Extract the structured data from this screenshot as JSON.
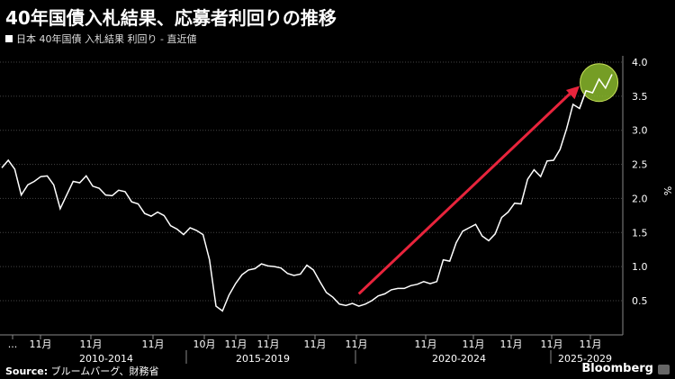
{
  "header": {
    "title": "40年国債入札結果、応募者利回りの推移",
    "subtitle": "日本 40年国債 入札結果 利回り - 直近値"
  },
  "footer": {
    "source_label": "Source:",
    "source_text": " ブルームバーグ、財務省",
    "brand": "Bloomberg"
  },
  "colors": {
    "background": "#000000",
    "line": "#ffffff",
    "arrow": "#e8243c",
    "highlight": "#8ab82c"
  },
  "chart_data": {
    "type": "line",
    "ylabel": "%",
    "ylim": [
      0,
      4.0
    ],
    "yticks": [
      "0.5",
      "1.0",
      "1.5",
      "2.0",
      "2.5",
      "3.0",
      "3.5",
      "4.0"
    ],
    "x_tick_labels": [
      "...",
      "11月",
      "11月",
      "11月",
      "10月",
      "11月",
      "11月",
      "11月",
      "11月",
      "11月",
      "11月",
      "11月",
      "11月",
      "11月"
    ],
    "periods": [
      "2010-2014",
      "2015-2019",
      "2020-2024",
      "2025-2029"
    ],
    "series": [
      {
        "values": [
          2.45,
          2.56,
          2.43,
          2.05,
          2.2,
          2.25,
          2.32,
          2.33,
          2.2,
          1.85,
          2.05,
          2.25,
          2.23,
          2.33,
          2.18,
          2.15,
          2.05,
          2.04,
          2.12,
          2.1,
          1.95,
          1.92,
          1.78,
          1.74,
          1.8,
          1.75,
          1.6,
          1.55,
          1.47,
          1.57,
          1.53,
          1.47,
          1.1,
          0.42,
          0.35,
          0.58,
          0.75,
          0.88,
          0.95,
          0.97,
          1.04,
          1.01,
          1.0,
          0.98,
          0.9,
          0.87,
          0.89,
          1.02,
          0.95,
          0.78,
          0.62,
          0.55,
          0.45,
          0.43,
          0.46,
          0.42,
          0.45,
          0.5,
          0.57,
          0.6,
          0.66,
          0.68,
          0.68,
          0.72,
          0.74,
          0.78,
          0.75,
          0.78,
          1.1,
          1.08,
          1.35,
          1.52,
          1.57,
          1.62,
          1.45,
          1.38,
          1.48,
          1.72,
          1.8,
          1.93,
          1.92,
          2.28,
          2.42,
          2.32,
          2.55,
          2.56,
          2.72,
          3.02,
          3.38,
          3.32,
          3.58,
          3.55,
          3.75,
          3.62,
          3.82
        ]
      }
    ],
    "annotations": {
      "arrow_from_index": 55,
      "arrow_from_value": 0.6,
      "arrow_to_index": 89,
      "arrow_to_value": 3.65,
      "circle_index": 92,
      "circle_value": 3.7
    }
  }
}
